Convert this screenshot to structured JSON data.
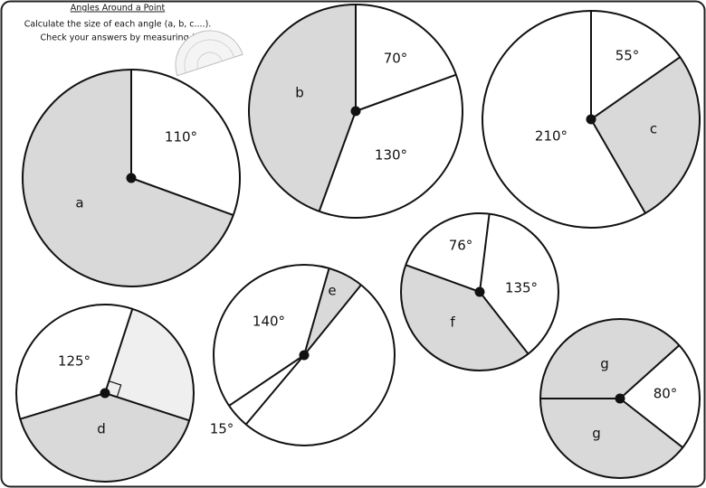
{
  "header": {
    "title": "Angles Around a Point",
    "instructions": [
      "Calculate the size of each angle (a, b, c....).",
      "Check your answers by measuring !"
    ]
  },
  "circles": [
    {
      "labels": [
        "110°",
        "a"
      ]
    },
    {
      "labels": [
        "70°",
        "130°",
        "b"
      ]
    },
    {
      "labels": [
        "55°",
        "c",
        "210°"
      ]
    },
    {
      "labels": [
        "140°",
        "e",
        "15°"
      ]
    },
    {
      "labels": [
        "76°",
        "135°",
        "f"
      ]
    },
    {
      "labels": [
        "125°",
        "d"
      ]
    },
    {
      "labels": [
        "g",
        "80°",
        "g"
      ]
    }
  ]
}
